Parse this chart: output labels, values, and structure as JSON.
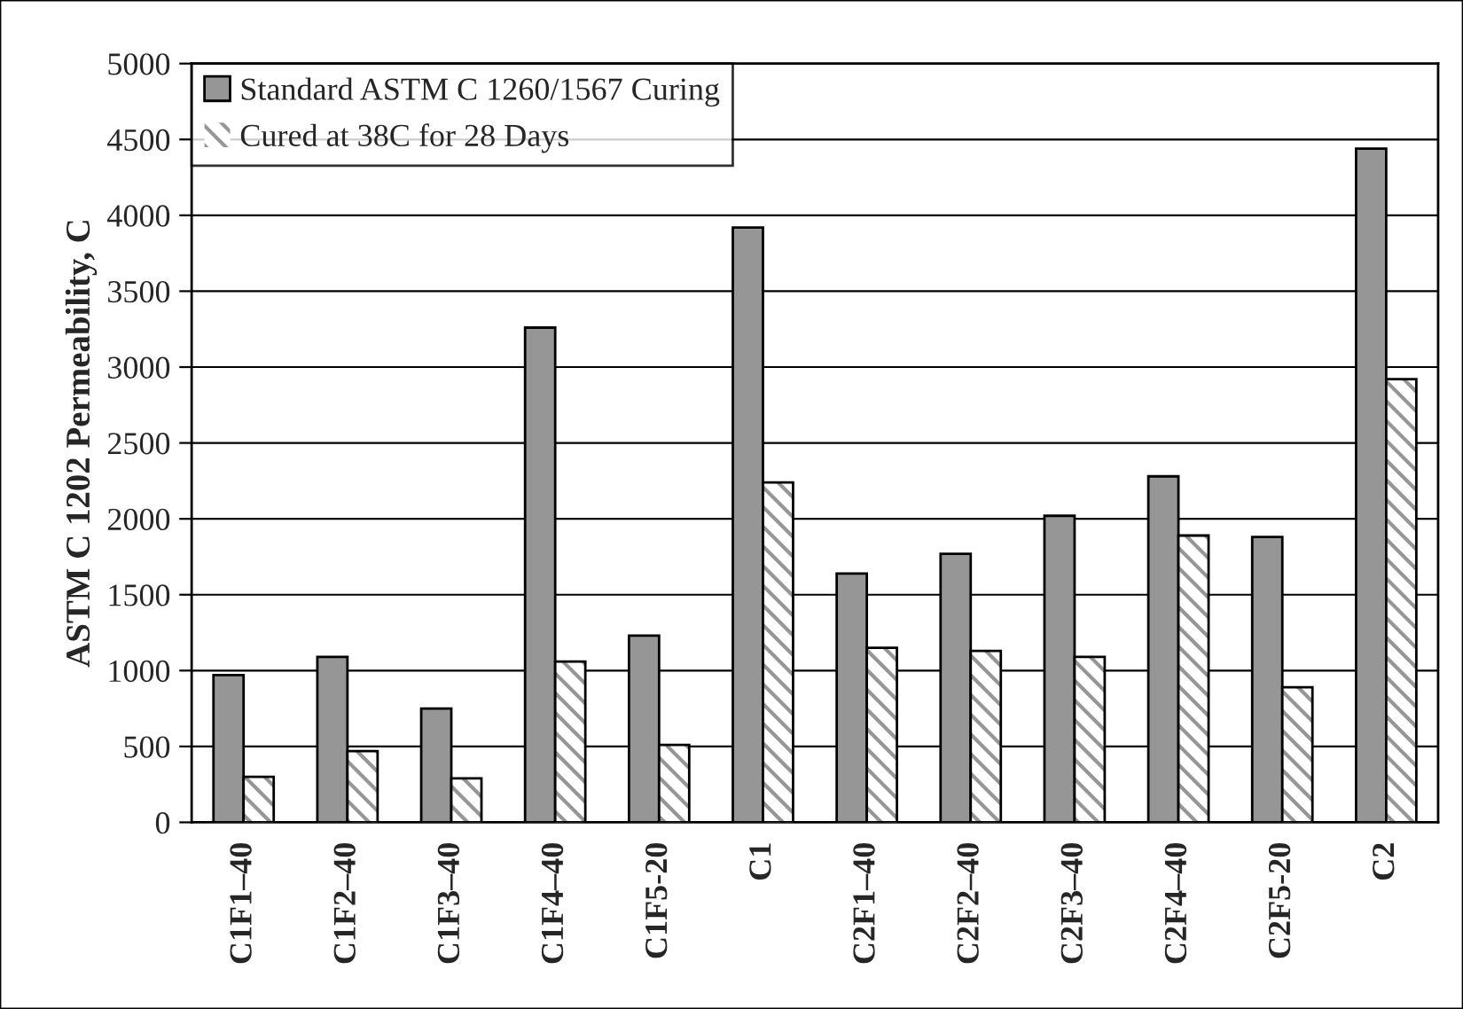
{
  "chart_data": {
    "type": "bar",
    "ylabel": "ASTM C 1202 Permeability, C",
    "categories": [
      "C1F1–40",
      "C1F2–40",
      "C1F3–40",
      "C1F4–40",
      "C1F5-20",
      "C1",
      "C2F1–40",
      "C2F2–40",
      "C2F3–40",
      "C2F4–40",
      "C2F5-20",
      "C2"
    ],
    "series": [
      {
        "name": "Standard ASTM C 1260/1567 Curing",
        "color": "#969696",
        "values": [
          970,
          1090,
          750,
          3260,
          1230,
          3920,
          1640,
          1770,
          2020,
          2280,
          1880,
          4440
        ]
      },
      {
        "name": "Cured at 38C for 28 Days",
        "color": "#ffffff",
        "values": [
          300,
          470,
          290,
          1060,
          510,
          2240,
          1150,
          1130,
          1090,
          1890,
          890,
          2920
        ]
      }
    ],
    "ylim": [
      0,
      5000
    ],
    "yticks": [
      0,
      500,
      1000,
      1500,
      2000,
      2500,
      3000,
      3500,
      4000,
      4500,
      5000
    ],
    "grid": "y",
    "legend": "top left"
  }
}
